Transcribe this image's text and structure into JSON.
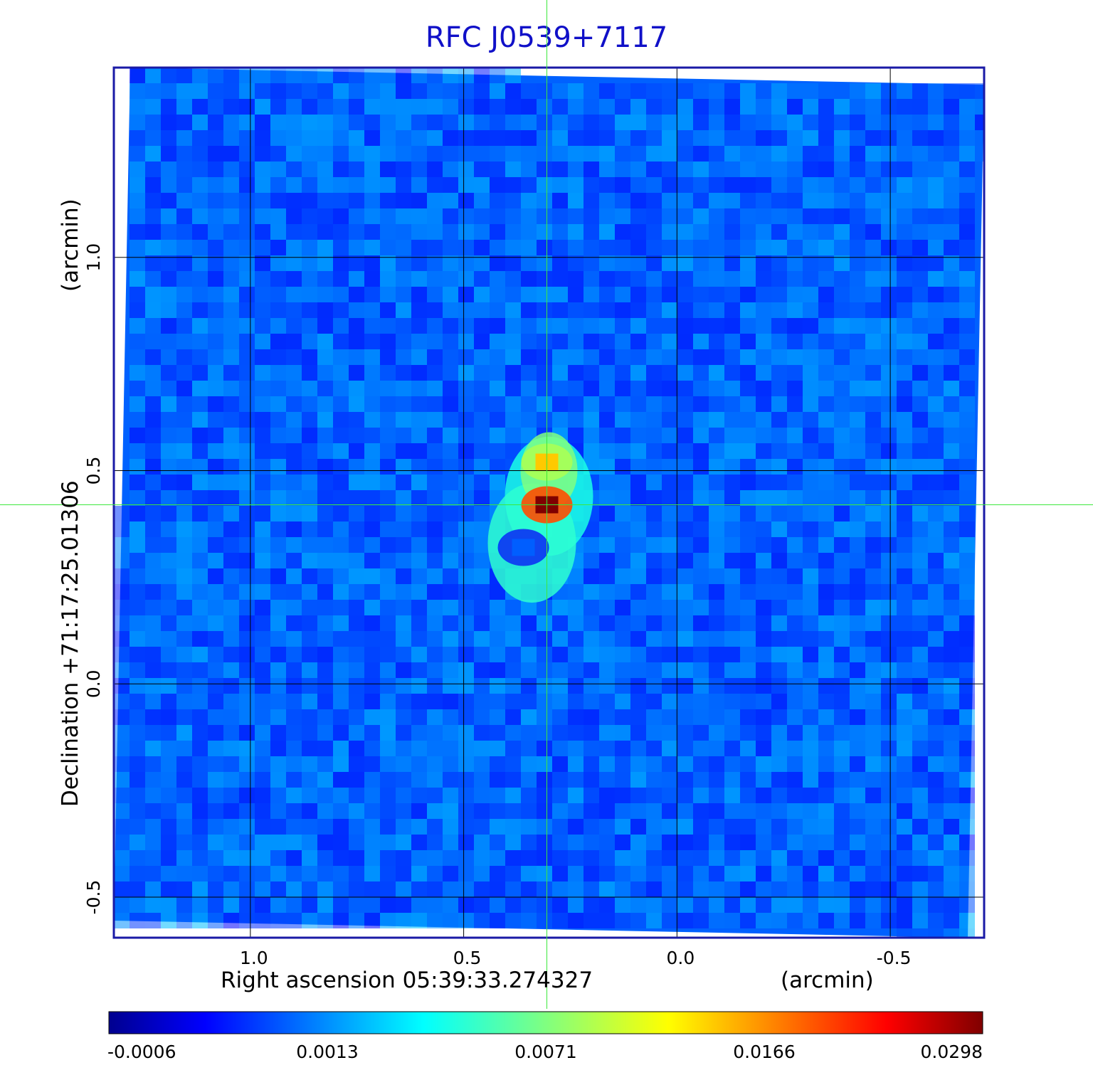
{
  "chart_data": {
    "type": "heatmap",
    "title": "RFC J0539+7117",
    "xlabel": "Right ascension  05:39:33.274327",
    "xunit": "(arcmin)",
    "ylabel": "Declination  +71:17:25.01306",
    "yunit": "(arcmin)",
    "x_ticks": [
      {
        "value": 1.0,
        "label": "1.0"
      },
      {
        "value": 0.5,
        "label": "0.5"
      },
      {
        "value": 0.0,
        "label": "0.0"
      },
      {
        "value": -0.5,
        "label": "-0.5"
      }
    ],
    "y_ticks": [
      {
        "value": 1.0,
        "label": "1.0"
      },
      {
        "value": 0.5,
        "label": "0.5"
      },
      {
        "value": 0.0,
        "label": "0.0"
      },
      {
        "value": -0.5,
        "label": "-0.5"
      }
    ],
    "xlim": [
      1.32,
      -0.72
    ],
    "ylim": [
      -0.595,
      1.445
    ],
    "grid": true,
    "crosshair": {
      "x": 0.305,
      "y": 0.42
    },
    "colormap": "jet",
    "colorbar": {
      "ticks": [
        "-0.0006",
        "0.0013",
        "0.0071",
        "0.0166",
        "0.0298"
      ]
    },
    "source_components": [
      {
        "x": 0.305,
        "y": 0.42,
        "peak": 0.0298
      },
      {
        "x": 0.305,
        "y": 0.52,
        "peak": 0.02
      },
      {
        "x": 0.36,
        "y": 0.32,
        "peak": 0.006
      }
    ],
    "colors": {
      "frame": "#1a1aa6",
      "crosshair": "#3ce83c",
      "grid": "#000000",
      "title": "#1010c8"
    }
  }
}
